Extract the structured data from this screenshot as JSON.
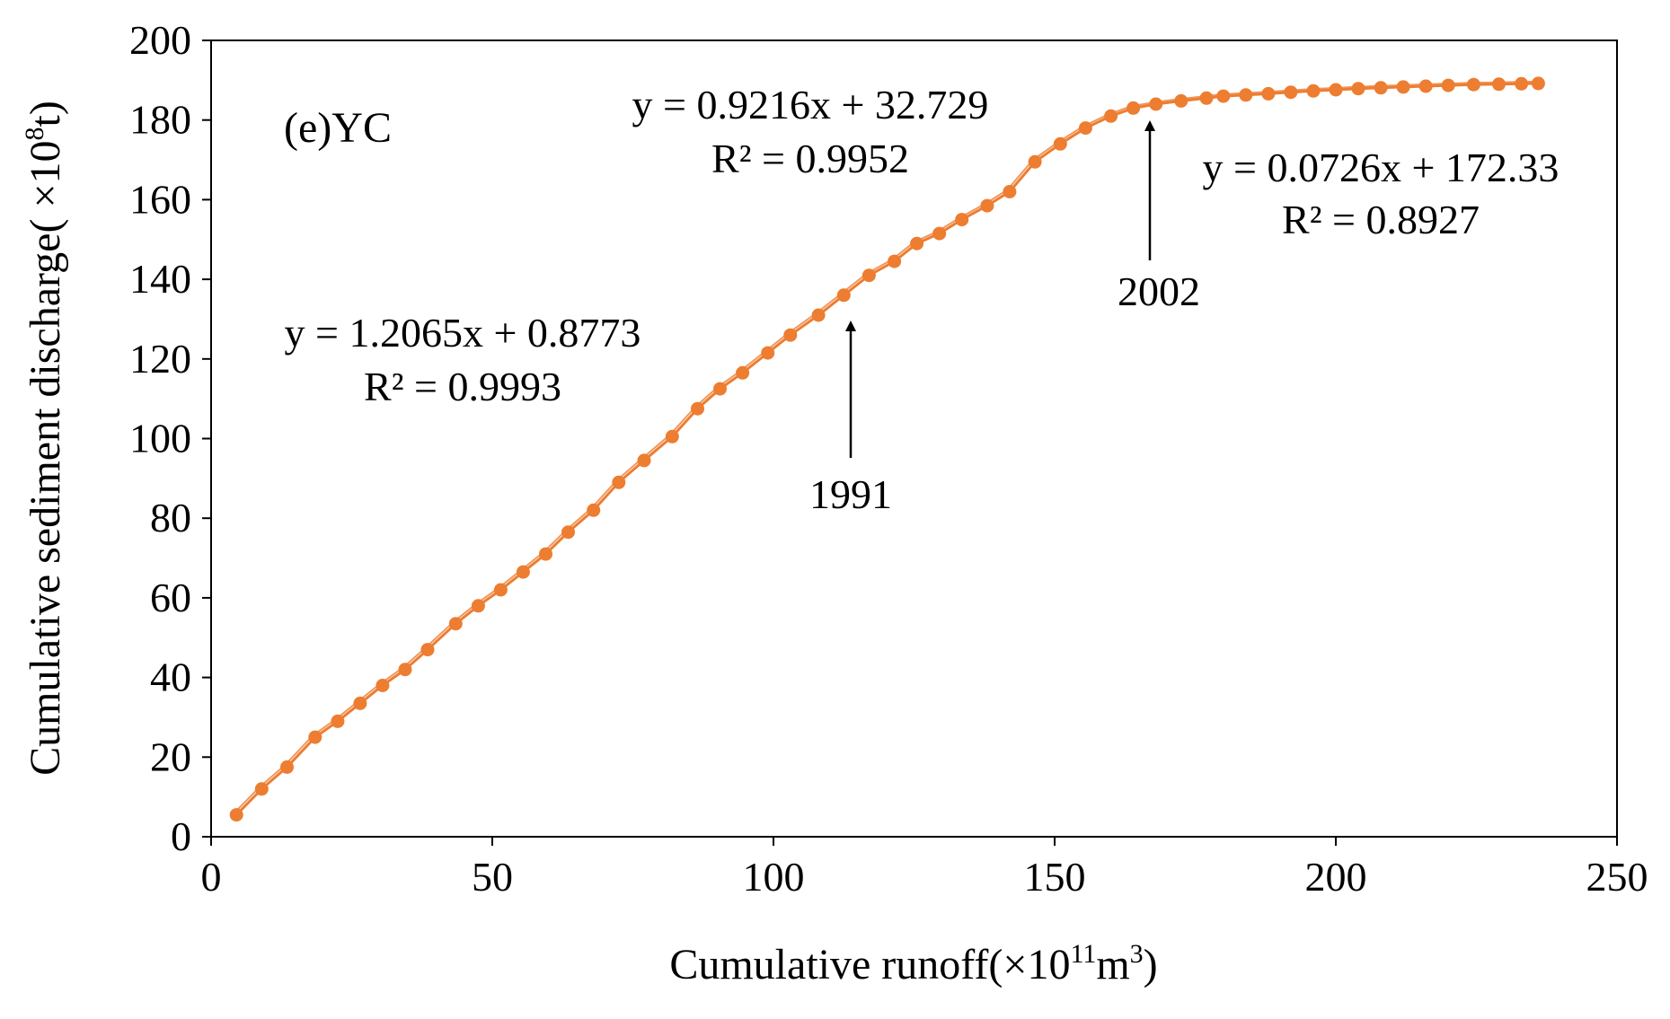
{
  "chart_data": {
    "type": "scatter",
    "panel_label": "(e)YC",
    "xlabel": {
      "prefix": "Cumulative runoff(×10",
      "exp": "11",
      "mid": "m",
      "exp2": "3",
      "suffix": ")"
    },
    "ylabel": {
      "prefix": "Cumulative sediment discharge( ×10",
      "exp": "8",
      "suffix": "t)"
    },
    "xlim": [
      0,
      250
    ],
    "ylim": [
      0,
      200
    ],
    "xticks": [
      "0",
      "50",
      "100",
      "150",
      "200",
      "250"
    ],
    "yticks": [
      "0",
      "20",
      "40",
      "60",
      "80",
      "100",
      "120",
      "140",
      "160",
      "180",
      "200"
    ],
    "grid": false,
    "color": "#ED7D31",
    "series": [
      {
        "name": "YC",
        "x": [
          4.5,
          9,
          13.5,
          18.5,
          22.5,
          26.5,
          30.5,
          34.5,
          38.5,
          43.5,
          47.5,
          51.5,
          55.5,
          59.5,
          63.5,
          68,
          72.5,
          77,
          82,
          86.5,
          90.5,
          94.5,
          99,
          103,
          108,
          112.5,
          117,
          121.5,
          125.5,
          129.5,
          133.5,
          138,
          142,
          146.5,
          151,
          155.5,
          160,
          164,
          168,
          172.5,
          177,
          180,
          184,
          188,
          192,
          196,
          200,
          204,
          208,
          212,
          216,
          220,
          224.5,
          229,
          233,
          236
        ],
        "y": [
          5.5,
          12,
          17.5,
          25,
          29,
          33.5,
          38,
          42,
          47,
          53.5,
          58,
          62,
          66.5,
          71,
          76.5,
          82,
          89,
          94.5,
          100.5,
          107.5,
          112.5,
          116.5,
          121.5,
          126,
          131,
          136,
          141,
          144.5,
          149,
          151.5,
          155,
          158.5,
          162,
          169.5,
          174,
          178,
          181,
          183,
          184,
          184.8,
          185.5,
          186,
          186.3,
          186.6,
          187,
          187.3,
          187.6,
          187.9,
          188.1,
          188.3,
          188.5,
          188.7,
          188.9,
          189,
          189.1,
          189.2
        ]
      }
    ],
    "annotations": [
      {
        "line1": "y = 1.2065x + 0.8773",
        "line2": "R² = 0.9993"
      },
      {
        "line1": "y = 0.9216x + 32.729",
        "line2": "R² = 0.9952"
      },
      {
        "line1": "y = 0.0726x + 172.33",
        "line2": "R² = 0.8927"
      }
    ],
    "arrows": [
      {
        "label": "1991",
        "x": 114,
        "y": 130
      },
      {
        "label": "2002",
        "x": 167,
        "y": 181
      }
    ]
  }
}
